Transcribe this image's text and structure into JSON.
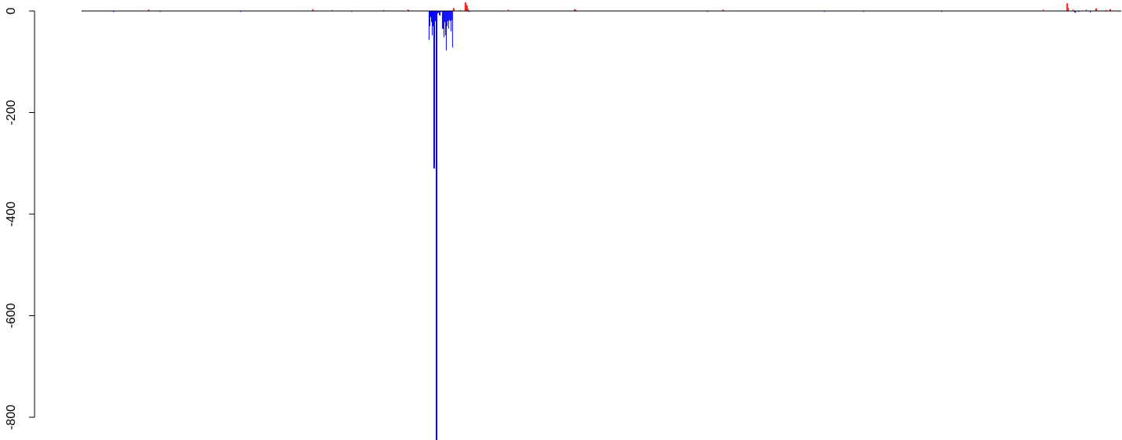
{
  "chart_data": {
    "type": "bar",
    "title": "",
    "xlabel": "",
    "ylabel": "",
    "ylim": [
      -850,
      2
    ],
    "y_ticks": [
      "0",
      "-200",
      "-400",
      "-600",
      "-800"
    ],
    "positive_color": "#ff0000",
    "negative_color": "#0000ff",
    "grid": false,
    "legend": "none",
    "bars": [
      {
        "index": 0,
        "value": -1
      },
      {
        "index": 40,
        "value": -2
      },
      {
        "index": 41,
        "value": -1
      },
      {
        "index": 85,
        "value": 3
      },
      {
        "index": 86,
        "value": 2
      },
      {
        "index": 100,
        "value": -2
      },
      {
        "index": 203,
        "value": -2
      },
      {
        "index": 295,
        "value": 4
      },
      {
        "index": 296,
        "value": 2
      },
      {
        "index": 320,
        "value": 2
      },
      {
        "index": 345,
        "value": -2
      },
      {
        "index": 386,
        "value": 2
      },
      {
        "index": 417,
        "value": 3
      },
      {
        "index": 418,
        "value": 2
      },
      {
        "index": 444,
        "value": -57
      },
      {
        "index": 445,
        "value": -30
      },
      {
        "index": 446,
        "value": -12
      },
      {
        "index": 447,
        "value": -22
      },
      {
        "index": 448,
        "value": -48
      },
      {
        "index": 449,
        "value": -30
      },
      {
        "index": 450,
        "value": -310
      },
      {
        "index": 451,
        "value": -310
      },
      {
        "index": 452,
        "value": -20
      },
      {
        "index": 453,
        "value": -845
      },
      {
        "index": 454,
        "value": -845
      },
      {
        "index": 455,
        "value": -5
      },
      {
        "index": 456,
        "value": -3
      },
      {
        "index": 457,
        "value": -8
      },
      {
        "index": 458,
        "value": -9
      },
      {
        "index": 459,
        "value": -2
      },
      {
        "index": 460,
        "value": -1
      },
      {
        "index": 461,
        "value": -35
      },
      {
        "index": 462,
        "value": -35
      },
      {
        "index": 463,
        "value": -52
      },
      {
        "index": 464,
        "value": -22
      },
      {
        "index": 465,
        "value": -48
      },
      {
        "index": 466,
        "value": -78
      },
      {
        "index": 467,
        "value": -30
      },
      {
        "index": 468,
        "value": -20
      },
      {
        "index": 469,
        "value": -35
      },
      {
        "index": 470,
        "value": -18
      },
      {
        "index": 471,
        "value": -20
      },
      {
        "index": 472,
        "value": -40
      },
      {
        "index": 473,
        "value": -18
      },
      {
        "index": 474,
        "value": -72
      },
      {
        "index": 475,
        "value": 6
      },
      {
        "index": 476,
        "value": 5
      },
      {
        "index": 484,
        "value": 2
      },
      {
        "index": 490,
        "value": 17
      },
      {
        "index": 491,
        "value": 17
      },
      {
        "index": 492,
        "value": 12
      },
      {
        "index": 493,
        "value": 10
      },
      {
        "index": 494,
        "value": 4
      },
      {
        "index": 495,
        "value": -2
      },
      {
        "index": 496,
        "value": -1
      },
      {
        "index": 545,
        "value": 3
      },
      {
        "index": 630,
        "value": 4
      },
      {
        "index": 631,
        "value": 3
      },
      {
        "index": 632,
        "value": 2
      },
      {
        "index": 800,
        "value": -2
      },
      {
        "index": 820,
        "value": 3
      },
      {
        "index": 821,
        "value": 2
      },
      {
        "index": 950,
        "value": -2
      },
      {
        "index": 1000,
        "value": -2
      },
      {
        "index": 1100,
        "value": -2
      },
      {
        "index": 1230,
        "value": 3
      },
      {
        "index": 1260,
        "value": 15
      },
      {
        "index": 1261,
        "value": 15
      },
      {
        "index": 1262,
        "value": 6
      },
      {
        "index": 1268,
        "value": 3
      },
      {
        "index": 1270,
        "value": -3
      },
      {
        "index": 1271,
        "value": -4
      },
      {
        "index": 1275,
        "value": -2
      },
      {
        "index": 1285,
        "value": 3
      },
      {
        "index": 1290,
        "value": -3
      },
      {
        "index": 1297,
        "value": 5
      },
      {
        "index": 1298,
        "value": 5
      },
      {
        "index": 1310,
        "value": 2
      },
      {
        "index": 1315,
        "value": 4
      },
      {
        "index": 1316,
        "value": 3
      }
    ]
  }
}
